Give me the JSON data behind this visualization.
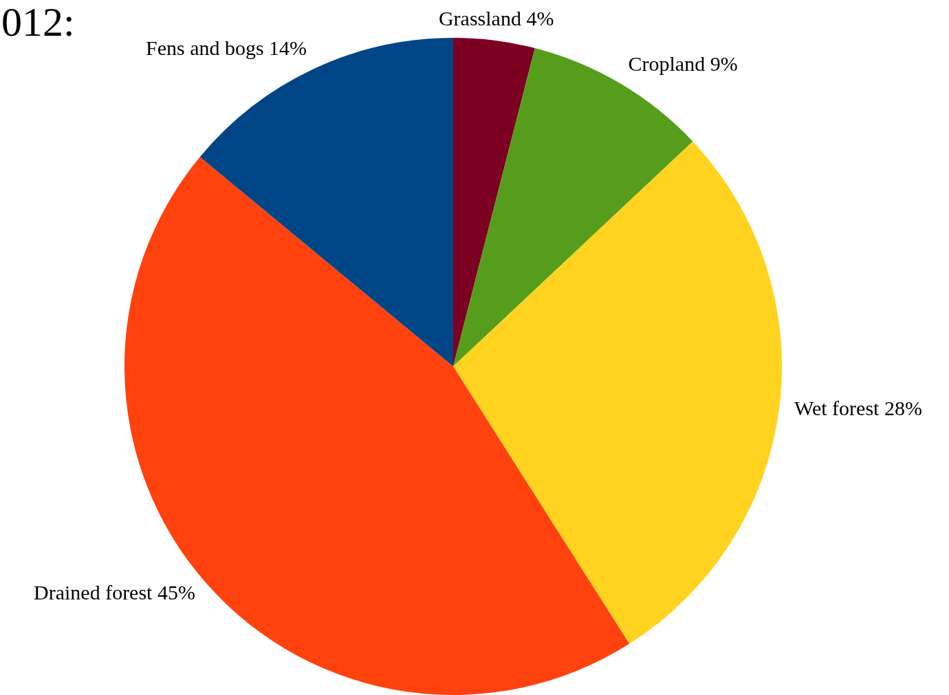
{
  "chart_data": {
    "type": "pie",
    "title": "012:",
    "categories": [
      "Grassland",
      "Cropland",
      "Wet forest",
      "Drained forest",
      "Fens and bogs"
    ],
    "values": [
      4,
      9,
      28,
      45,
      14
    ],
    "value_labels": [
      "4%",
      "9%",
      "28%",
      "45%",
      "14%"
    ],
    "colors": [
      "#7b0022",
      "#579d1c",
      "#ffd320",
      "#ff420e",
      "#004586"
    ],
    "legend": false
  }
}
